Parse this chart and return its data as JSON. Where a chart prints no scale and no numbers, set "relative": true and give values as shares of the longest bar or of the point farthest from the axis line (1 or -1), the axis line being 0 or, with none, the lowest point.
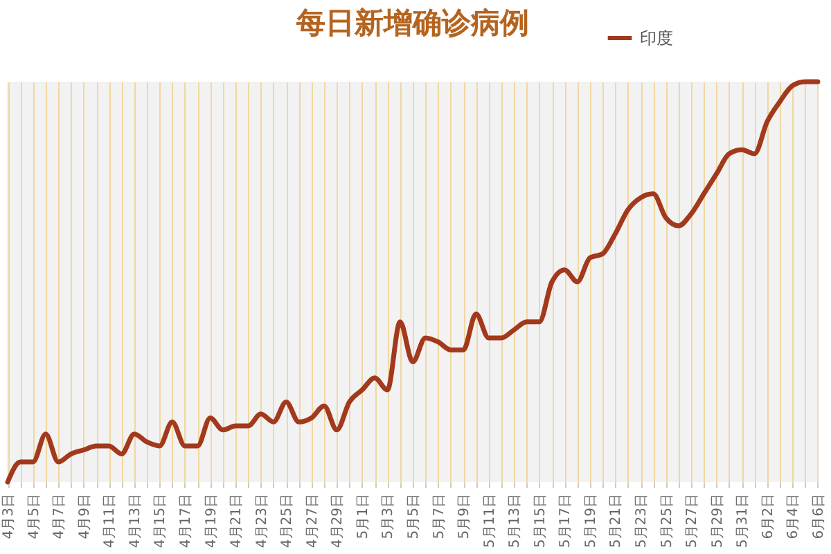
{
  "chart_data": {
    "type": "line",
    "title": "每日新增确诊病例",
    "relative": true,
    "grid": "x",
    "legend": "top right",
    "marker": "none",
    "categories": [
      "4月3日",
      null,
      "4月5日",
      null,
      "4月7日",
      null,
      "4月9日",
      null,
      "4月11日",
      null,
      "4月13日",
      null,
      "4月15日",
      null,
      "4月17日",
      null,
      "4月19日",
      null,
      "4月21日",
      null,
      "4月23日",
      null,
      "4月25日",
      null,
      "4月27日",
      null,
      "4月29日",
      null,
      "5月1日",
      null,
      "5月3日",
      null,
      "5月5日",
      null,
      "5月7日",
      null,
      "5月9日",
      null,
      "5月11日",
      null,
      "5月13日",
      null,
      "5月15日",
      null,
      "5月17日",
      null,
      "5月19日",
      null,
      "5月21日",
      null,
      "5月23日",
      null,
      "5月25日",
      null,
      "5月27日",
      null,
      "5月29日",
      null,
      "5月31日",
      null,
      "6月2日",
      null,
      "6月4日",
      null,
      "6月6日"
    ],
    "series": [
      {
        "name": "印度",
        "color": "#a3391c",
        "values": [
          0.0,
          0.05,
          0.05,
          0.12,
          0.05,
          0.07,
          0.08,
          0.09,
          0.09,
          0.07,
          0.12,
          0.1,
          0.09,
          0.15,
          0.09,
          0.09,
          0.16,
          0.13,
          0.14,
          0.14,
          0.17,
          0.15,
          0.2,
          0.15,
          0.16,
          0.19,
          0.13,
          0.2,
          0.23,
          0.26,
          0.23,
          0.4,
          0.3,
          0.36,
          0.35,
          0.33,
          0.33,
          0.42,
          0.36,
          0.36,
          0.38,
          0.4,
          0.4,
          0.5,
          0.53,
          0.5,
          0.56,
          0.57,
          0.62,
          0.68,
          0.71,
          0.72,
          0.66,
          0.64,
          0.67,
          0.72,
          0.77,
          0.82,
          0.83,
          0.82,
          0.9,
          0.95,
          0.99,
          1.0,
          1.0
        ]
      }
    ]
  }
}
